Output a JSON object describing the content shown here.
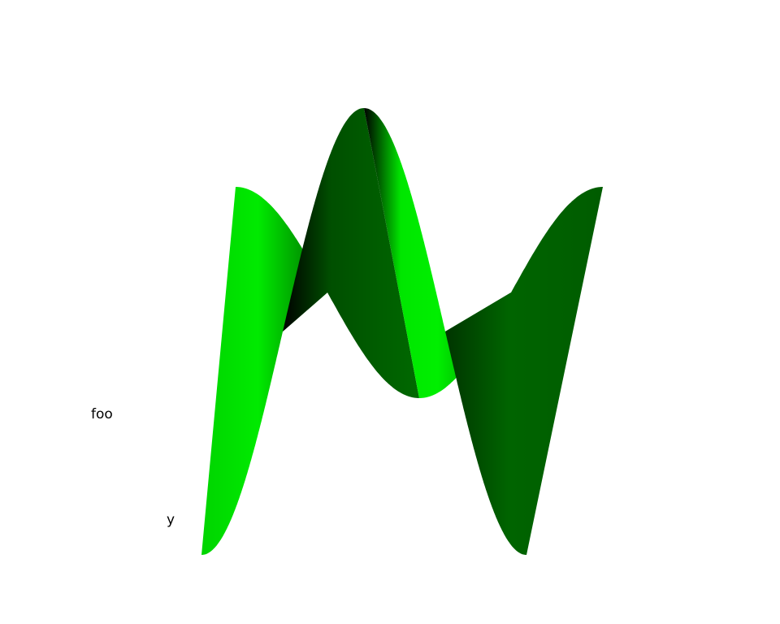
{
  "chart_data": {
    "type": "surface",
    "title": "",
    "axis_labels": {
      "label_1": "foo",
      "label_2": "y"
    },
    "surface": {
      "function": "sin",
      "x_range": [
        0,
        12.566
      ],
      "y_range": [
        -1,
        1
      ],
      "z_range": [
        -1,
        1
      ]
    }
  },
  "colors": {
    "surface_bright": "#00e600",
    "surface_mid": "#006400",
    "surface_dark": "#000000",
    "background": "#ffffff"
  }
}
